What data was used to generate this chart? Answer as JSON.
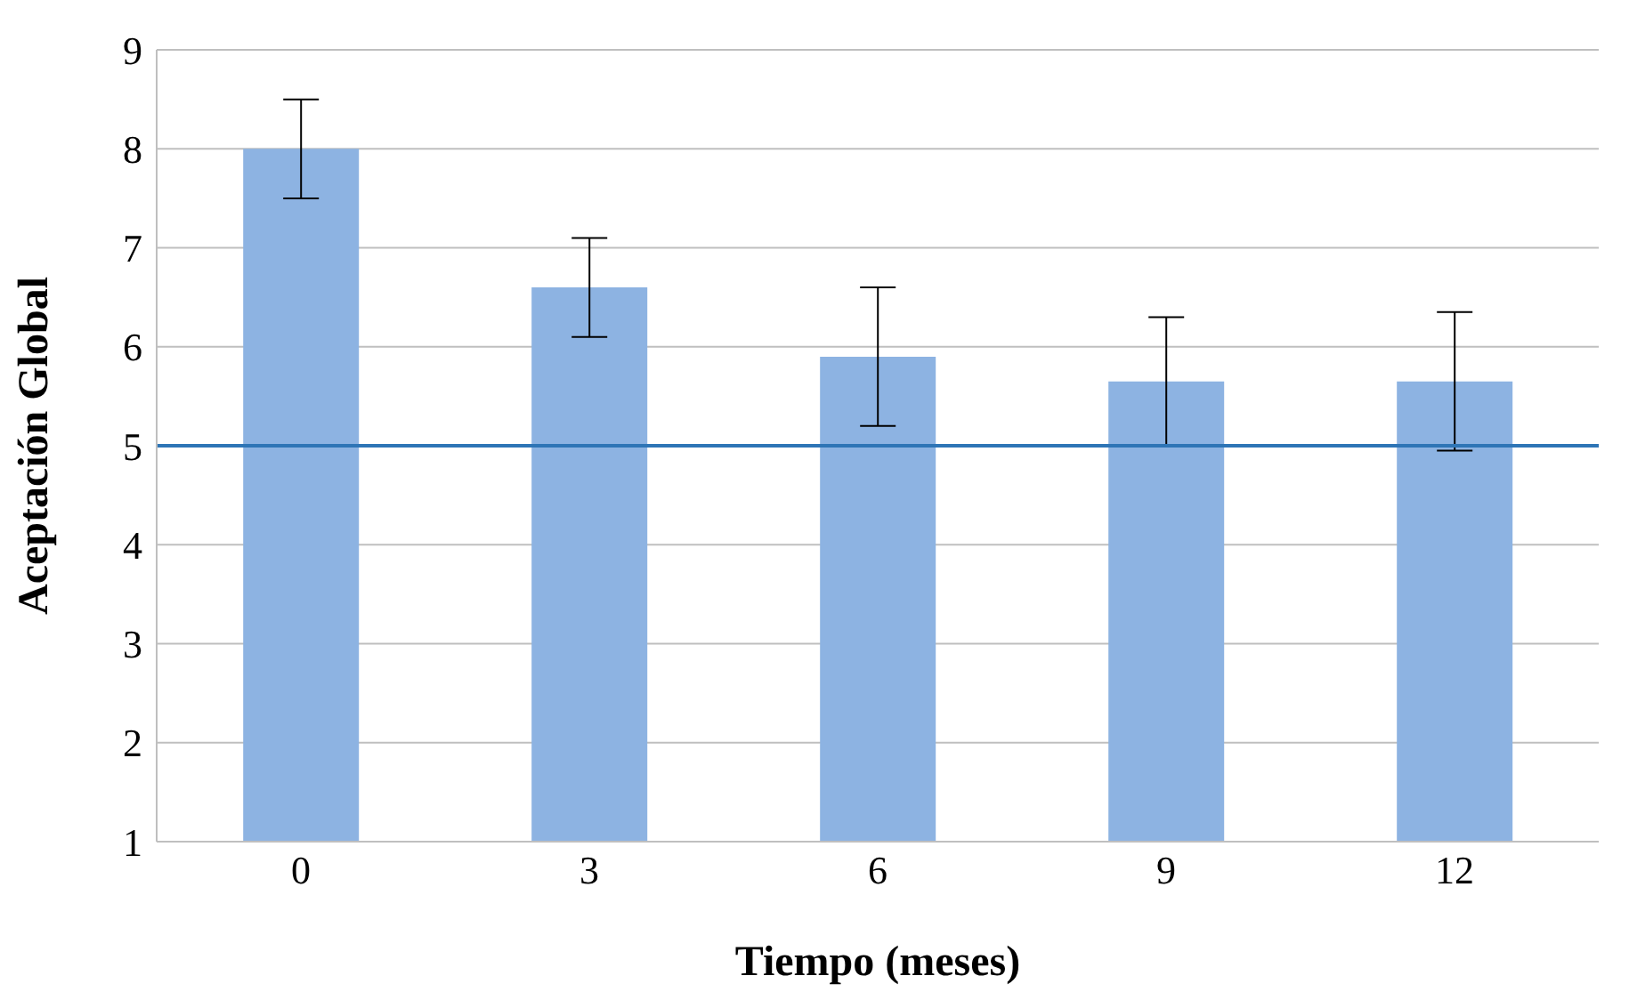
{
  "chart_data": {
    "type": "bar",
    "xlabel": "Tiempo (meses)",
    "ylabel": "Aceptación Global",
    "categories": [
      "0",
      "3",
      "6",
      "9",
      "12"
    ],
    "values": [
      8.0,
      6.6,
      5.9,
      5.65,
      5.65
    ],
    "errors": [
      0.5,
      0.5,
      0.7,
      0.65,
      0.7
    ],
    "color": "#8db3e2",
    "ylim": [
      1,
      9
    ],
    "yticks": [
      1,
      2,
      3,
      4,
      5,
      6,
      7,
      8,
      9
    ],
    "grid": "y",
    "ref_lines": [
      {
        "axis": "y",
        "value": 5,
        "color": "#2e75b6"
      }
    ]
  }
}
